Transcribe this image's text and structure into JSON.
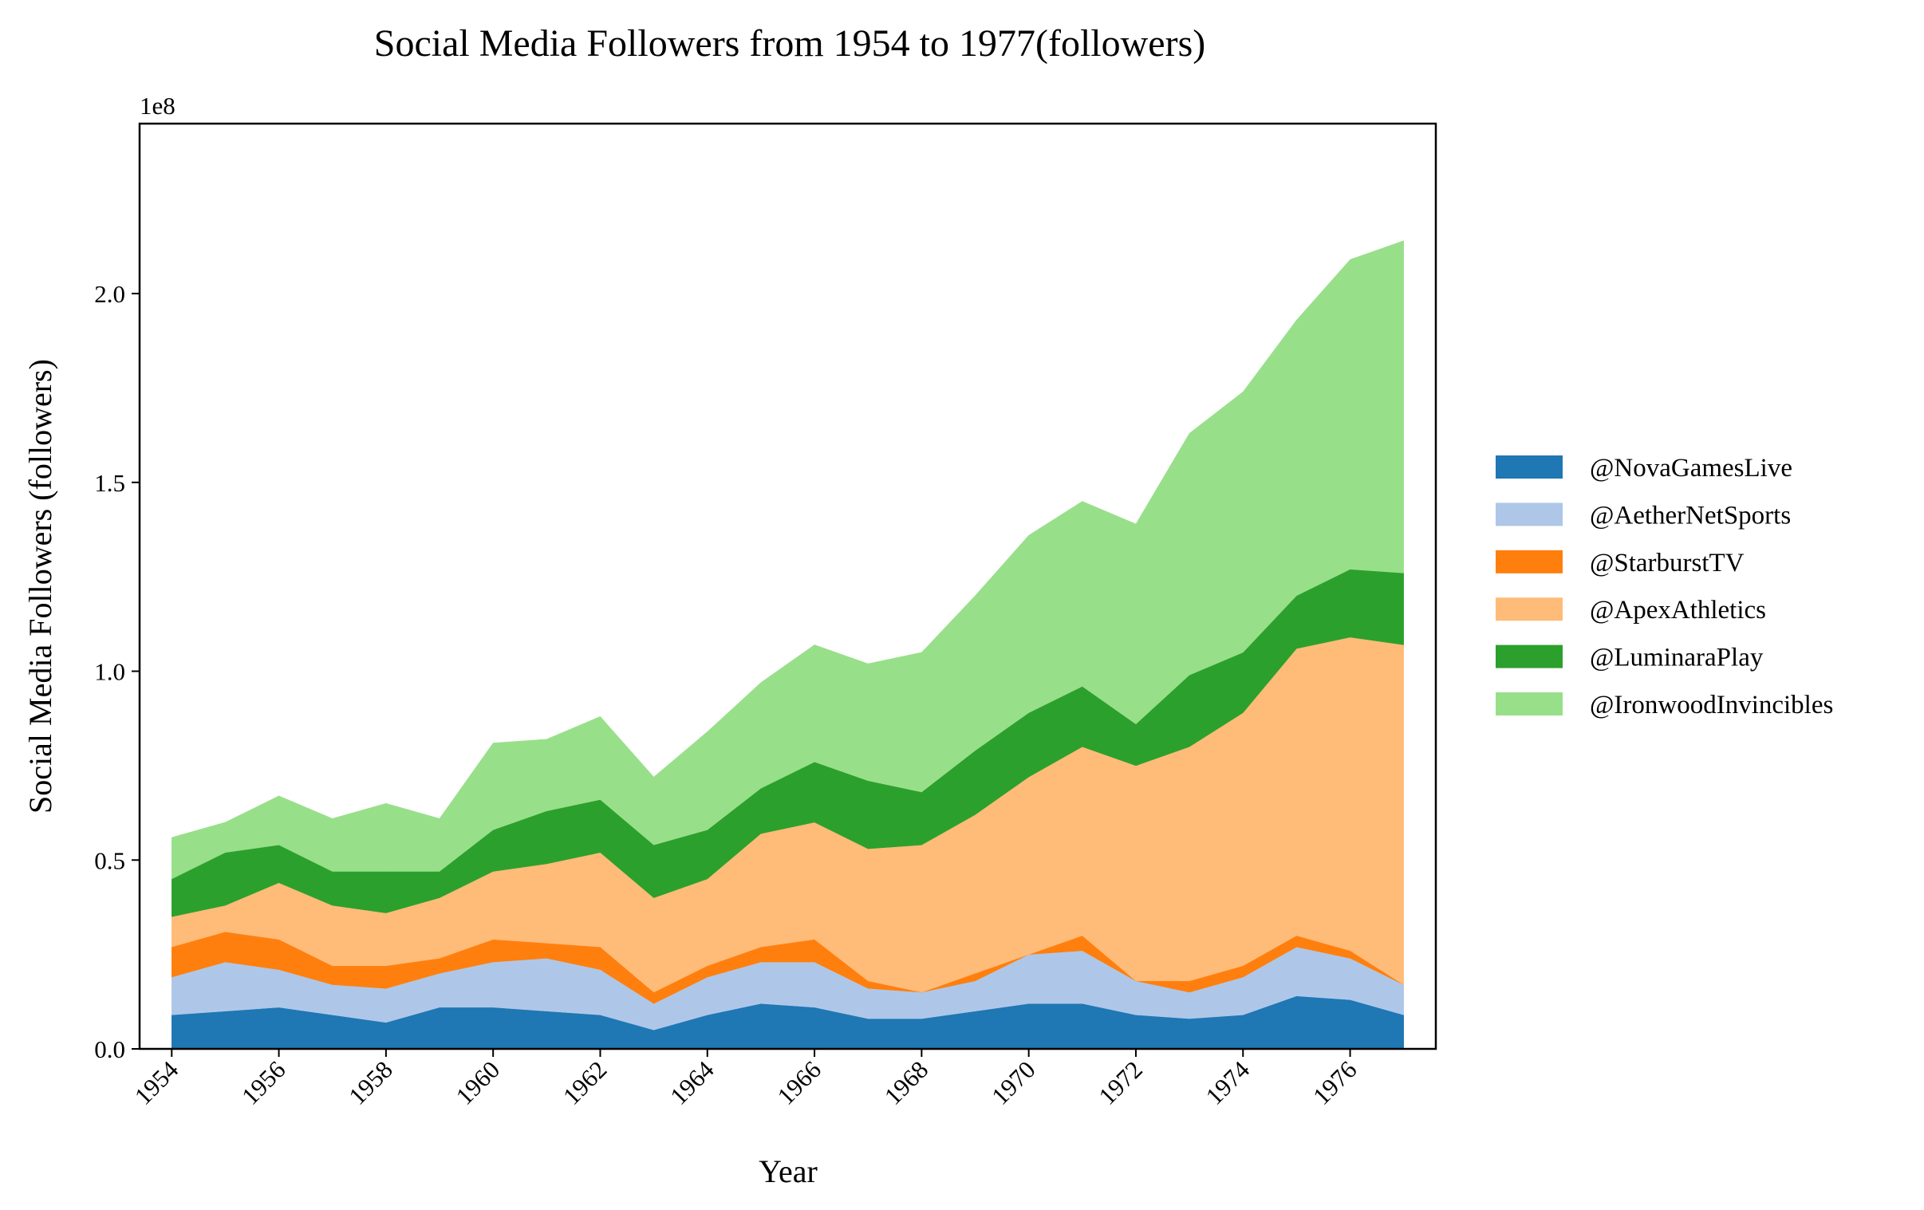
{
  "chart_data": {
    "type": "area",
    "title": "Social Media Followers from 1954 to 1977(followers)",
    "xlabel": "Year",
    "ylabel": "Social Media Followers (followers)",
    "offset_label": "1e8",
    "x": [
      1954,
      1955,
      1956,
      1957,
      1958,
      1959,
      1960,
      1961,
      1962,
      1963,
      1964,
      1965,
      1966,
      1967,
      1968,
      1969,
      1970,
      1971,
      1972,
      1973,
      1974,
      1975,
      1976,
      1977
    ],
    "xlim": [
      1953.4,
      1977.6
    ],
    "ylim": [
      0,
      2.45
    ],
    "x_ticks": [
      1954,
      1956,
      1958,
      1960,
      1962,
      1964,
      1966,
      1968,
      1970,
      1972,
      1974,
      1976
    ],
    "x_tick_labels": [
      "1954",
      "1956",
      "1958",
      "1960",
      "1962",
      "1964",
      "1966",
      "1968",
      "1970",
      "1972",
      "1974",
      "1976"
    ],
    "y_ticks": [
      0,
      0.5,
      1.0,
      1.5,
      2.0
    ],
    "y_tick_labels": [
      "0.0",
      "0.5",
      "1.0",
      "1.5",
      "2.0"
    ],
    "legend_position": "right",
    "series": [
      {
        "name": "@NovaGamesLive",
        "color": "#1f77b4",
        "values": [
          0.09,
          0.1,
          0.11,
          0.09,
          0.07,
          0.11,
          0.11,
          0.1,
          0.09,
          0.05,
          0.09,
          0.12,
          0.11,
          0.08,
          0.08,
          0.1,
          0.12,
          0.12,
          0.09,
          0.08,
          0.09,
          0.14,
          0.13,
          0.09
        ]
      },
      {
        "name": "@AetherNetSports",
        "color": "#aec7e8",
        "values": [
          0.1,
          0.13,
          0.1,
          0.08,
          0.09,
          0.09,
          0.12,
          0.14,
          0.12,
          0.07,
          0.1,
          0.11,
          0.12,
          0.08,
          0.07,
          0.08,
          0.13,
          0.14,
          0.09,
          0.07,
          0.1,
          0.13,
          0.11,
          0.08
        ]
      },
      {
        "name": "@StarburstTV",
        "color": "#ff7f0e",
        "values": [
          0.08,
          0.08,
          0.08,
          0.05,
          0.06,
          0.04,
          0.06,
          0.04,
          0.06,
          0.03,
          0.03,
          0.04,
          0.06,
          0.02,
          0.0,
          0.02,
          0.0,
          0.04,
          0.0,
          0.03,
          0.03,
          0.03,
          0.02,
          0.0
        ]
      },
      {
        "name": "@ApexAthletics",
        "color": "#ffbb78",
        "values": [
          0.08,
          0.07,
          0.15,
          0.16,
          0.14,
          0.16,
          0.18,
          0.21,
          0.25,
          0.25,
          0.23,
          0.3,
          0.31,
          0.35,
          0.39,
          0.42,
          0.47,
          0.5,
          0.57,
          0.62,
          0.67,
          0.76,
          0.83,
          0.9
        ]
      },
      {
        "name": "@LuminaraPlay",
        "color": "#2ca02c",
        "values": [
          0.1,
          0.14,
          0.1,
          0.09,
          0.11,
          0.07,
          0.11,
          0.14,
          0.14,
          0.14,
          0.13,
          0.12,
          0.16,
          0.18,
          0.14,
          0.17,
          0.17,
          0.16,
          0.11,
          0.19,
          0.16,
          0.14,
          0.18,
          0.19
        ]
      },
      {
        "name": "@IronwoodInvincibles",
        "color": "#98df8a",
        "values": [
          0.11,
          0.08,
          0.13,
          0.14,
          0.18,
          0.14,
          0.23,
          0.19,
          0.22,
          0.18,
          0.26,
          0.28,
          0.31,
          0.31,
          0.37,
          0.41,
          0.47,
          0.49,
          0.53,
          0.64,
          0.69,
          0.73,
          0.82,
          0.88
        ]
      }
    ]
  }
}
